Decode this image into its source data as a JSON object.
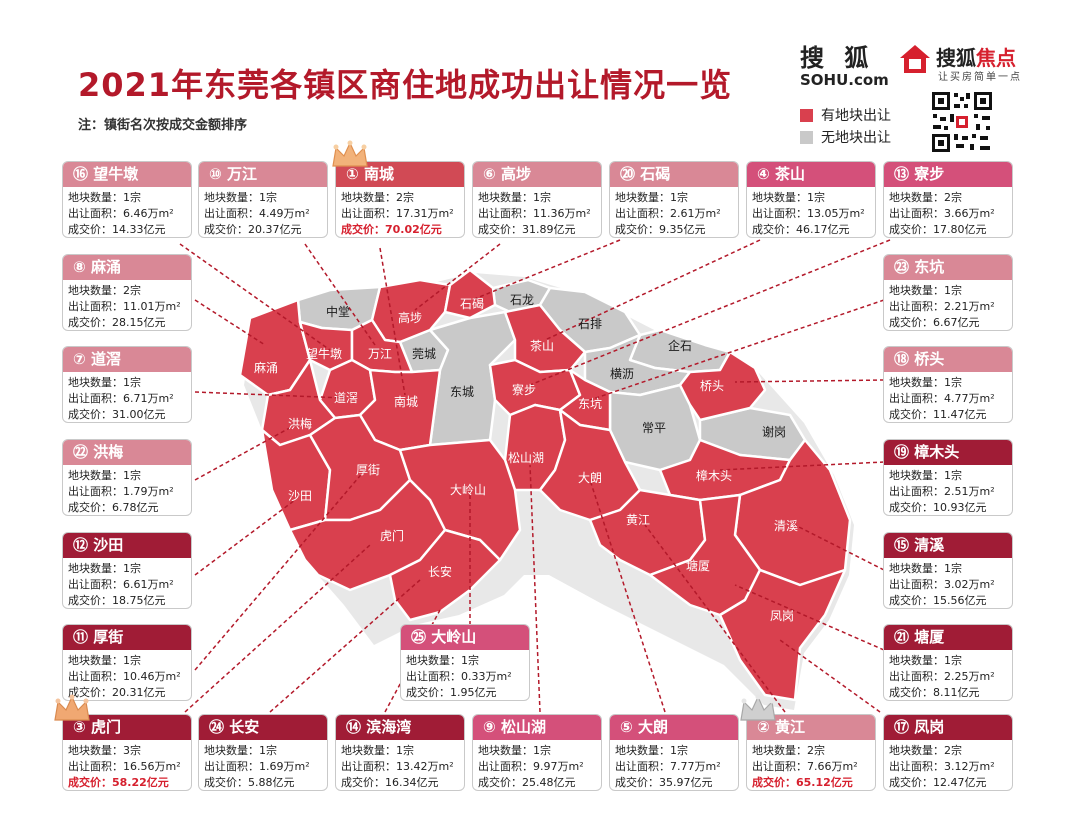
{
  "title": "2021年东莞各镇区商住地成功出让情况一览",
  "note": "注：镇街名次按成交金额排序",
  "logos": {
    "sohu_cn": "搜 狐",
    "sohu_en": "SOHU.com",
    "focus_a": "搜狐",
    "focus_b": "焦点",
    "focus_sub": "让买房简单一点"
  },
  "legend": {
    "with_land": {
      "label": "有地块出让",
      "color": "#d9404e"
    },
    "without_land": {
      "label": "无地块出让",
      "color": "#c9c9c9"
    }
  },
  "field_labels": {
    "count": "地块数量：",
    "area": "出让面积：",
    "price": "成交价："
  },
  "colors": {
    "red_region": "#d9404e",
    "gray_region": "#c9c9c9",
    "accent": "#b3192a"
  },
  "cards": [
    {
      "id": "wangniudun",
      "rank_label": "⑯",
      "name": "望牛墩",
      "count": "1宗",
      "area": "6.46万m²",
      "price": "14.33亿元",
      "style": "pink",
      "highlight": false
    },
    {
      "id": "wanjiang",
      "rank_label": "⑩",
      "name": "万江",
      "count": "1宗",
      "area": "4.49万m²",
      "price": "20.37亿元",
      "style": "pink",
      "highlight": false
    },
    {
      "id": "nancheng",
      "rank_label": "①",
      "name": "南城",
      "count": "2宗",
      "area": "17.31万m²",
      "price": "70.02亿元",
      "style": "red",
      "highlight": true
    },
    {
      "id": "gaobu",
      "rank_label": "⑥",
      "name": "高埗",
      "count": "1宗",
      "area": "11.36万m²",
      "price": "31.89亿元",
      "style": "pink",
      "highlight": false
    },
    {
      "id": "shijie",
      "rank_label": "⑳",
      "name": "石碣",
      "count": "1宗",
      "area": "2.61万m²",
      "price": "9.35亿元",
      "style": "pink",
      "highlight": false
    },
    {
      "id": "chashan",
      "rank_label": "④",
      "name": "茶山",
      "count": "1宗",
      "area": "13.05万m²",
      "price": "46.17亿元",
      "style": "pink2",
      "highlight": false
    },
    {
      "id": "liaobu",
      "rank_label": "⑬",
      "name": "寮步",
      "count": "2宗",
      "area": "3.66万m²",
      "price": "17.80亿元",
      "style": "pink2",
      "highlight": false
    },
    {
      "id": "machong",
      "rank_label": "⑧",
      "name": "麻涌",
      "count": "2宗",
      "area": "11.01万m²",
      "price": "28.15亿元",
      "style": "pink",
      "highlight": false
    },
    {
      "id": "dongkeng",
      "rank_label": "㉓",
      "name": "东坑",
      "count": "1宗",
      "area": "2.21万m²",
      "price": "6.67亿元",
      "style": "pink",
      "highlight": false
    },
    {
      "id": "daojiao",
      "rank_label": "⑦",
      "name": "道滘",
      "count": "1宗",
      "area": "6.71万m²",
      "price": "31.00亿元",
      "style": "pink",
      "highlight": false
    },
    {
      "id": "qiaotou",
      "rank_label": "⑱",
      "name": "桥头",
      "count": "1宗",
      "area": "4.77万m²",
      "price": "11.47亿元",
      "style": "pink",
      "highlight": false
    },
    {
      "id": "hongmei",
      "rank_label": "㉒",
      "name": "洪梅",
      "count": "1宗",
      "area": "1.79万m²",
      "price": "6.78亿元",
      "style": "pink",
      "highlight": false
    },
    {
      "id": "zhangmutou",
      "rank_label": "⑲",
      "name": "樟木头",
      "count": "1宗",
      "area": "2.51万m²",
      "price": "10.93亿元",
      "style": "dark",
      "highlight": false
    },
    {
      "id": "shatian",
      "rank_label": "⑫",
      "name": "沙田",
      "count": "1宗",
      "area": "6.61万m²",
      "price": "18.75亿元",
      "style": "dark",
      "highlight": false
    },
    {
      "id": "qingxi",
      "rank_label": "⑮",
      "name": "清溪",
      "count": "1宗",
      "area": "3.02万m²",
      "price": "15.56亿元",
      "style": "dark",
      "highlight": false
    },
    {
      "id": "houjie",
      "rank_label": "⑪",
      "name": "厚街",
      "count": "1宗",
      "area": "10.46万m²",
      "price": "20.31亿元",
      "style": "dark",
      "highlight": false
    },
    {
      "id": "dalingshan",
      "rank_label": "㉕",
      "name": "大岭山",
      "count": "1宗",
      "area": "0.33万m²",
      "price": "1.95亿元",
      "style": "pink2",
      "highlight": false
    },
    {
      "id": "tangxia",
      "rank_label": "㉑",
      "name": "塘厦",
      "count": "1宗",
      "area": "2.25万m²",
      "price": "8.11亿元",
      "style": "dark",
      "highlight": false
    },
    {
      "id": "humen",
      "rank_label": "③",
      "name": "虎门",
      "count": "3宗",
      "area": "16.56万m²",
      "price": "58.22亿元",
      "style": "dark",
      "highlight": true
    },
    {
      "id": "changan",
      "rank_label": "㉔",
      "name": "长安",
      "count": "1宗",
      "area": "1.69万m²",
      "price": "5.88亿元",
      "style": "dark",
      "highlight": false
    },
    {
      "id": "binhaiwan",
      "rank_label": "⑭",
      "name": "滨海湾",
      "count": "1宗",
      "area": "13.42万m²",
      "price": "16.34亿元",
      "style": "dark",
      "highlight": false
    },
    {
      "id": "songshanhu",
      "rank_label": "⑨",
      "name": "松山湖",
      "count": "1宗",
      "area": "9.97万m²",
      "price": "25.48亿元",
      "style": "pink2",
      "highlight": false
    },
    {
      "id": "dalang",
      "rank_label": "⑤",
      "name": "大朗",
      "count": "1宗",
      "area": "7.77万m²",
      "price": "35.97亿元",
      "style": "pink2",
      "highlight": false
    },
    {
      "id": "huangjiang",
      "rank_label": "②",
      "name": "黄江",
      "count": "2宗",
      "area": "7.66万m²",
      "price": "65.12亿元",
      "style": "pink",
      "highlight": true
    },
    {
      "id": "fenggang",
      "rank_label": "⑰",
      "name": "凤岗",
      "count": "2宗",
      "area": "3.12万m²",
      "price": "12.47亿元",
      "style": "dark",
      "highlight": false
    }
  ],
  "map_labels": [
    {
      "id": "zhongtang",
      "text": "中堂",
      "status": "gray"
    },
    {
      "id": "gaobu",
      "text": "高埗",
      "status": "red"
    },
    {
      "id": "shijie",
      "text": "石碣",
      "status": "red"
    },
    {
      "id": "shilong",
      "text": "石龙",
      "status": "gray"
    },
    {
      "id": "shipai",
      "text": "石排",
      "status": "gray"
    },
    {
      "id": "machong",
      "text": "麻涌",
      "status": "red"
    },
    {
      "id": "wangniudun",
      "text": "望牛墩",
      "status": "red"
    },
    {
      "id": "wanjiang",
      "text": "万江",
      "status": "red"
    },
    {
      "id": "guancheng",
      "text": "莞城",
      "status": "gray"
    },
    {
      "id": "chashan",
      "text": "茶山",
      "status": "red"
    },
    {
      "id": "qishi",
      "text": "企石",
      "status": "gray"
    },
    {
      "id": "hengli",
      "text": "横沥",
      "status": "gray"
    },
    {
      "id": "dongcheng",
      "text": "东城",
      "status": "gray"
    },
    {
      "id": "liaobu",
      "text": "寮步",
      "status": "red"
    },
    {
      "id": "qiaotou",
      "text": "桥头",
      "status": "red"
    },
    {
      "id": "daojiao",
      "text": "道滘",
      "status": "red"
    },
    {
      "id": "nancheng",
      "text": "南城",
      "status": "red"
    },
    {
      "id": "dongkeng",
      "text": "东坑",
      "status": "red"
    },
    {
      "id": "hongmei",
      "text": "洪梅",
      "status": "red"
    },
    {
      "id": "changping",
      "text": "常平",
      "status": "gray"
    },
    {
      "id": "xiegang",
      "text": "谢岗",
      "status": "gray"
    },
    {
      "id": "songshanhu",
      "text": "松山湖",
      "status": "red"
    },
    {
      "id": "houjie",
      "text": "厚街",
      "status": "red"
    },
    {
      "id": "dalang",
      "text": "大朗",
      "status": "red"
    },
    {
      "id": "zhangmutou",
      "text": "樟木头",
      "status": "red"
    },
    {
      "id": "dalingshan",
      "text": "大岭山",
      "status": "red"
    },
    {
      "id": "shatian",
      "text": "沙田",
      "status": "red"
    },
    {
      "id": "huangjiang",
      "text": "黄江",
      "status": "red"
    },
    {
      "id": "qingxi",
      "text": "清溪",
      "status": "red"
    },
    {
      "id": "humen",
      "text": "虎门",
      "status": "red"
    },
    {
      "id": "tangxia",
      "text": "塘厦",
      "status": "red"
    },
    {
      "id": "changan",
      "text": "长安",
      "status": "red"
    },
    {
      "id": "fenggang",
      "text": "凤岗",
      "status": "red"
    }
  ]
}
